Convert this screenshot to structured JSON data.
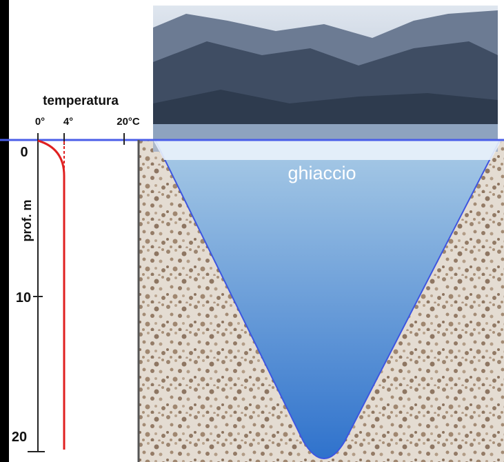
{
  "profile": {
    "title": "temperatura",
    "x_ticks": [
      "0°",
      "4°",
      "20°C"
    ],
    "y_label": "prof. m",
    "y_ticks": [
      "0",
      "10",
      "20"
    ]
  },
  "lake": {
    "ice_label": "ghiaccio"
  }
}
